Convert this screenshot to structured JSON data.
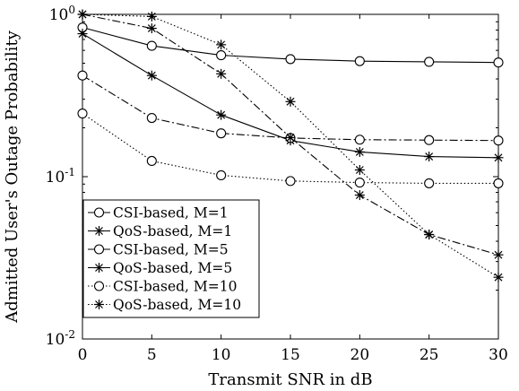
{
  "chart_data": {
    "type": "line",
    "xlabel": "Transmit SNR in dB",
    "ylabel": "Admitted User's Outage Probability",
    "xlim": [
      0,
      30
    ],
    "ylim": [
      0.01,
      1.0
    ],
    "yscale": "log",
    "x": [
      0,
      5,
      10,
      15,
      20,
      25,
      30
    ],
    "xticks": [
      "0",
      "5",
      "10",
      "15",
      "20",
      "25",
      "30"
    ],
    "yticks": [
      {
        "base": "10",
        "exp": "0",
        "value": 1
      },
      {
        "base": "10",
        "exp": "-1",
        "value": 0.1
      },
      {
        "base": "10",
        "exp": "-2",
        "value": 0.01
      }
    ],
    "grid": false,
    "legend_position": "bottom-left",
    "series": [
      {
        "name": "CSI-based, M=1",
        "marker": "circle",
        "dash": "solid",
        "values": [
          0.83,
          0.64,
          0.56,
          0.53,
          0.515,
          0.51,
          0.505
        ]
      },
      {
        "name": "QoS-based, M=1",
        "marker": "star",
        "dash": "solid",
        "values": [
          0.76,
          0.42,
          0.24,
          0.167,
          0.142,
          0.133,
          0.131
        ]
      },
      {
        "name": "CSI-based, M=5",
        "marker": "circle",
        "dash": "dashdot",
        "values": [
          0.42,
          0.23,
          0.185,
          0.173,
          0.169,
          0.168,
          0.167
        ]
      },
      {
        "name": "QoS-based, M=5",
        "marker": "star",
        "dash": "dashdot",
        "values": [
          1.0,
          0.82,
          0.43,
          0.174,
          0.077,
          0.044,
          0.033
        ]
      },
      {
        "name": "CSI-based, M=10",
        "marker": "circle",
        "dash": "dotted",
        "values": [
          0.245,
          0.125,
          0.102,
          0.094,
          0.092,
          0.091,
          0.091
        ]
      },
      {
        "name": "QoS-based, M=10",
        "marker": "star",
        "dash": "dotted",
        "values": [
          1.0,
          0.97,
          0.65,
          0.29,
          0.11,
          0.044,
          0.024
        ]
      }
    ]
  }
}
